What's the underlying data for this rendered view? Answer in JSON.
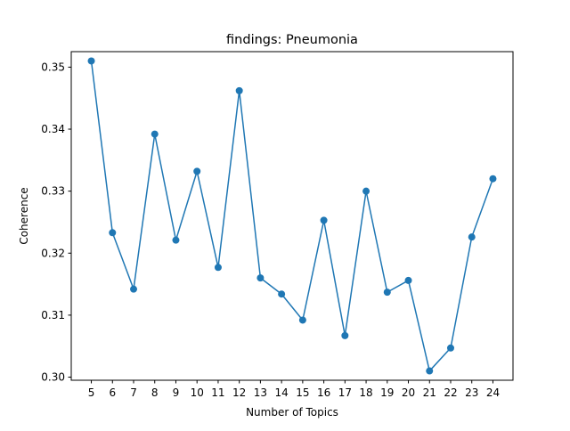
{
  "chart_data": {
    "type": "line",
    "title": "findings: Pneumonia",
    "xlabel": "Number of Topics",
    "ylabel": "Coherence",
    "x": [
      5,
      6,
      7,
      8,
      9,
      10,
      11,
      12,
      13,
      14,
      15,
      16,
      17,
      18,
      19,
      20,
      21,
      22,
      23,
      24
    ],
    "series": [
      {
        "values": [
          0.351,
          0.3233,
          0.3142,
          0.3392,
          0.3221,
          0.3332,
          0.3177,
          0.3462,
          0.316,
          0.3134,
          0.3092,
          0.3253,
          0.3067,
          0.33,
          0.3137,
          0.3156,
          0.301,
          0.3047,
          0.3226,
          0.332
        ],
        "color": "#1f77b4",
        "marker": "circle"
      }
    ],
    "xticks": [
      "5",
      "6",
      "7",
      "8",
      "9",
      "10",
      "11",
      "12",
      "13",
      "14",
      "15",
      "16",
      "17",
      "18",
      "19",
      "20",
      "21",
      "22",
      "23",
      "24"
    ],
    "yticks": [
      "0.30",
      "0.31",
      "0.32",
      "0.33",
      "0.34",
      "0.35"
    ],
    "ytick_values": [
      0.3,
      0.31,
      0.32,
      0.33,
      0.34,
      0.35
    ],
    "xlim": [
      4.05,
      24.95
    ],
    "ylim": [
      0.2995,
      0.3525
    ],
    "grid": false,
    "legend": "none"
  }
}
